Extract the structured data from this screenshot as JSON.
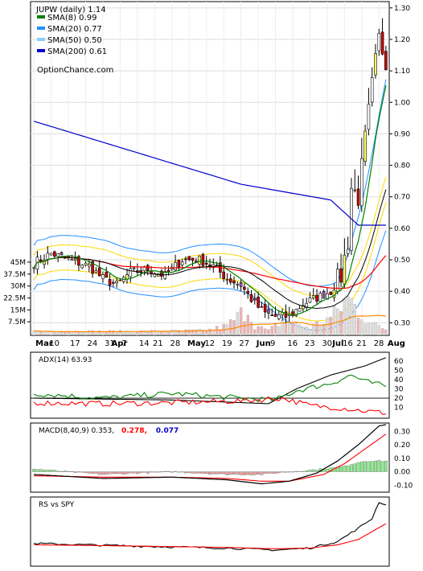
{
  "chart_data": [
    {
      "type": "candlestick",
      "ticker_label": "JUPW (daily) 1.14",
      "watermark": "OptionChance.com",
      "y_axis_ticks": [
        "1.30",
        "1.20",
        "1.10",
        "1.00",
        "0.90",
        "0.80",
        "0.70",
        "0.60",
        "0.50",
        "0.40",
        "0.30"
      ],
      "ylim": [
        0.26,
        1.32
      ],
      "volume_axis_ticks": [
        "45M",
        "37.5M",
        "30M",
        "22.5M",
        "15M",
        "7.5M"
      ],
      "volume_ylim": [
        0,
        47
      ],
      "x_tick_labels": [
        "Mar",
        "10",
        "17",
        "24",
        "31",
        "Apr",
        "7",
        "14",
        "21",
        "28",
        "May",
        "12",
        "19",
        "27",
        "Jun",
        "9",
        "16",
        "23",
        "30",
        "Jul",
        "16",
        "21",
        "28",
        "Aug"
      ],
      "legend": [
        {
          "label": "SMA(8) 0.99",
          "color": "#008000"
        },
        {
          "label": "SMA(20) 0.77",
          "color": "#1e90ff"
        },
        {
          "label": "SMA(50) 0.50",
          "color": "#87cefa"
        },
        {
          "label": "SMA(200) 0.61",
          "color": "#0000cd"
        }
      ],
      "close_anchor_points": [
        [
          0,
          0.49
        ],
        [
          5,
          0.52
        ],
        [
          10,
          0.5
        ],
        [
          16,
          0.48
        ],
        [
          20,
          0.44
        ],
        [
          24,
          0.42
        ],
        [
          28,
          0.46
        ],
        [
          33,
          0.47
        ],
        [
          38,
          0.45
        ],
        [
          43,
          0.5
        ],
        [
          48,
          0.5
        ],
        [
          52,
          0.48
        ],
        [
          56,
          0.44
        ],
        [
          60,
          0.42
        ],
        [
          64,
          0.36
        ],
        [
          67,
          0.33
        ],
        [
          70,
          0.32
        ],
        [
          74,
          0.32
        ],
        [
          78,
          0.36
        ],
        [
          82,
          0.38
        ],
        [
          86,
          0.4
        ],
        [
          89,
          0.45
        ],
        [
          91,
          0.56
        ],
        [
          92,
          0.73
        ],
        [
          94,
          0.7
        ],
        [
          96,
          0.88
        ],
        [
          98,
          1.05
        ],
        [
          100,
          1.2
        ],
        [
          102,
          1.14
        ]
      ],
      "volume_anchor_points": [
        [
          0,
          1.5
        ],
        [
          30,
          1.5
        ],
        [
          50,
          2
        ],
        [
          56,
          5
        ],
        [
          62,
          16
        ],
        [
          64,
          5
        ],
        [
          68,
          2
        ],
        [
          72,
          8
        ],
        [
          80,
          4
        ],
        [
          86,
          10
        ],
        [
          91,
          22
        ],
        [
          94,
          15
        ],
        [
          96,
          10
        ],
        [
          98,
          6
        ],
        [
          102,
          3
        ]
      ],
      "sma200_anchor_points": [
        [
          0,
          0.94
        ],
        [
          30,
          0.84
        ],
        [
          60,
          0.74
        ],
        [
          86,
          0.69
        ],
        [
          90,
          0.65
        ],
        [
          94,
          0.61
        ],
        [
          102,
          0.61
        ]
      ]
    },
    {
      "type": "line",
      "label": "ADX(14) 63.93",
      "y_axis_ticks": [
        "60",
        "50",
        "40",
        "30",
        "20",
        "10"
      ],
      "ylim": [
        0,
        68
      ],
      "series": [
        {
          "color": "#000000",
          "values": [
            [
              0,
              20
            ],
            [
              40,
              18
            ],
            [
              68,
              14
            ],
            [
              76,
              30
            ],
            [
              86,
              45
            ],
            [
              96,
              55
            ],
            [
              102,
              63.9
            ]
          ]
        },
        {
          "color": "#008000",
          "values": [
            [
              0,
              25
            ],
            [
              20,
              20
            ],
            [
              40,
              25
            ],
            [
              60,
              20
            ],
            [
              70,
              18
            ],
            [
              76,
              28
            ],
            [
              86,
              36
            ],
            [
              92,
              45
            ],
            [
              96,
              38
            ],
            [
              102,
              33
            ]
          ]
        },
        {
          "color": "#ff0000",
          "values": [
            [
              0,
              15
            ],
            [
              20,
              14
            ],
            [
              40,
              15
            ],
            [
              60,
              17
            ],
            [
              72,
              20
            ],
            [
              80,
              12
            ],
            [
              90,
              9
            ],
            [
              96,
              6
            ],
            [
              102,
              4
            ]
          ]
        }
      ]
    },
    {
      "type": "bar+line",
      "label": "MACD(8,40,9) 0.353,",
      "signal_label": "0.278,",
      "signal_color": "#ff0000",
      "hist_label": "0.077",
      "hist_color": "#0000cd",
      "y_axis_ticks": [
        "0.30",
        "0.20",
        "0.10",
        "0.00",
        "-0.10"
      ],
      "ylim": [
        -0.14,
        0.35
      ],
      "macd_anchor_points": [
        [
          0,
          -0.02
        ],
        [
          20,
          -0.05
        ],
        [
          40,
          -0.04
        ],
        [
          56,
          -0.06
        ],
        [
          66,
          -0.09
        ],
        [
          74,
          -0.07
        ],
        [
          82,
          -0.01
        ],
        [
          88,
          0.08
        ],
        [
          94,
          0.2
        ],
        [
          100,
          0.34
        ],
        [
          102,
          0.35
        ]
      ],
      "signal_anchor_points": [
        [
          0,
          -0.03
        ],
        [
          20,
          -0.04
        ],
        [
          40,
          -0.04
        ],
        [
          56,
          -0.05
        ],
        [
          66,
          -0.07
        ],
        [
          74,
          -0.07
        ],
        [
          84,
          -0.02
        ],
        [
          90,
          0.06
        ],
        [
          96,
          0.17
        ],
        [
          102,
          0.28
        ]
      ],
      "hist_anchor_points": [
        [
          0,
          0.02
        ],
        [
          20,
          -0.02
        ],
        [
          40,
          0.0
        ],
        [
          56,
          -0.02
        ],
        [
          66,
          -0.02
        ],
        [
          74,
          0.0
        ],
        [
          84,
          0.02
        ],
        [
          90,
          0.04
        ],
        [
          94,
          0.07
        ],
        [
          96,
          0.08
        ],
        [
          102,
          0.08
        ]
      ]
    },
    {
      "type": "line",
      "label": "RS vs SPY",
      "series": [
        {
          "color": "#000000",
          "values": [
            [
              0,
              0.32
            ],
            [
              30,
              0.28
            ],
            [
              56,
              0.25
            ],
            [
              70,
              0.22
            ],
            [
              80,
              0.25
            ],
            [
              88,
              0.35
            ],
            [
              94,
              0.55
            ],
            [
              98,
              0.7
            ],
            [
              100,
              0.95
            ],
            [
              102,
              0.9
            ]
          ]
        },
        {
          "color": "#ff0000",
          "values": [
            [
              0,
              0.3
            ],
            [
              30,
              0.28
            ],
            [
              56,
              0.26
            ],
            [
              70,
              0.24
            ],
            [
              80,
              0.25
            ],
            [
              88,
              0.3
            ],
            [
              94,
              0.38
            ],
            [
              98,
              0.5
            ],
            [
              102,
              0.62
            ]
          ]
        }
      ]
    }
  ]
}
